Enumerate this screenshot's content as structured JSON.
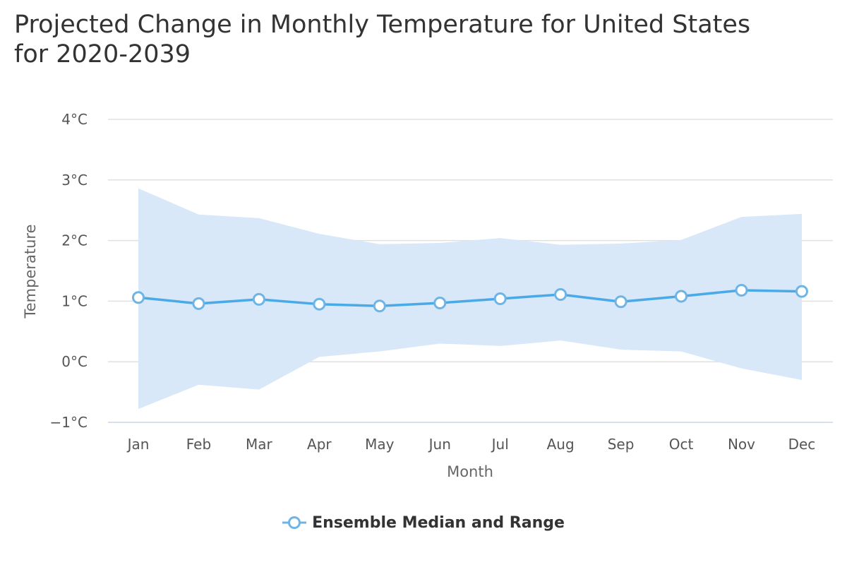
{
  "chart_data": {
    "type": "line",
    "title": "Projected Change in Monthly Temperature for United States for 2020-2039",
    "xlabel": "Month",
    "ylabel": "Temperature",
    "categories": [
      "Jan",
      "Feb",
      "Mar",
      "Apr",
      "May",
      "Jun",
      "Jul",
      "Aug",
      "Sep",
      "Oct",
      "Nov",
      "Dec"
    ],
    "ylim": [
      -1,
      4
    ],
    "yticks": [
      -1,
      0,
      1,
      2,
      3,
      4
    ],
    "ytick_labels": [
      "−1°C",
      "0°C",
      "1°C",
      "2°C",
      "3°C",
      "4°C"
    ],
    "grid": true,
    "legend_position": "bottom-center",
    "series": [
      {
        "name": "Ensemble Median and Range",
        "values": [
          1.06,
          0.96,
          1.03,
          0.95,
          0.92,
          0.97,
          1.04,
          1.11,
          0.99,
          1.08,
          1.18,
          1.16
        ],
        "range_low": [
          -0.78,
          -0.38,
          -0.46,
          0.08,
          0.17,
          0.3,
          0.26,
          0.35,
          0.2,
          0.17,
          -0.11,
          -0.3
        ],
        "range_high": [
          2.86,
          2.43,
          2.37,
          2.11,
          1.94,
          1.96,
          2.04,
          1.93,
          1.95,
          2.01,
          2.39,
          2.44
        ]
      }
    ],
    "colors": {
      "line": "#4aaae8",
      "marker_stroke": "#6eb4e6",
      "marker_fill": "#ffffff",
      "range_fill": "#d8e8f8",
      "grid": "#e0e0e0"
    }
  }
}
